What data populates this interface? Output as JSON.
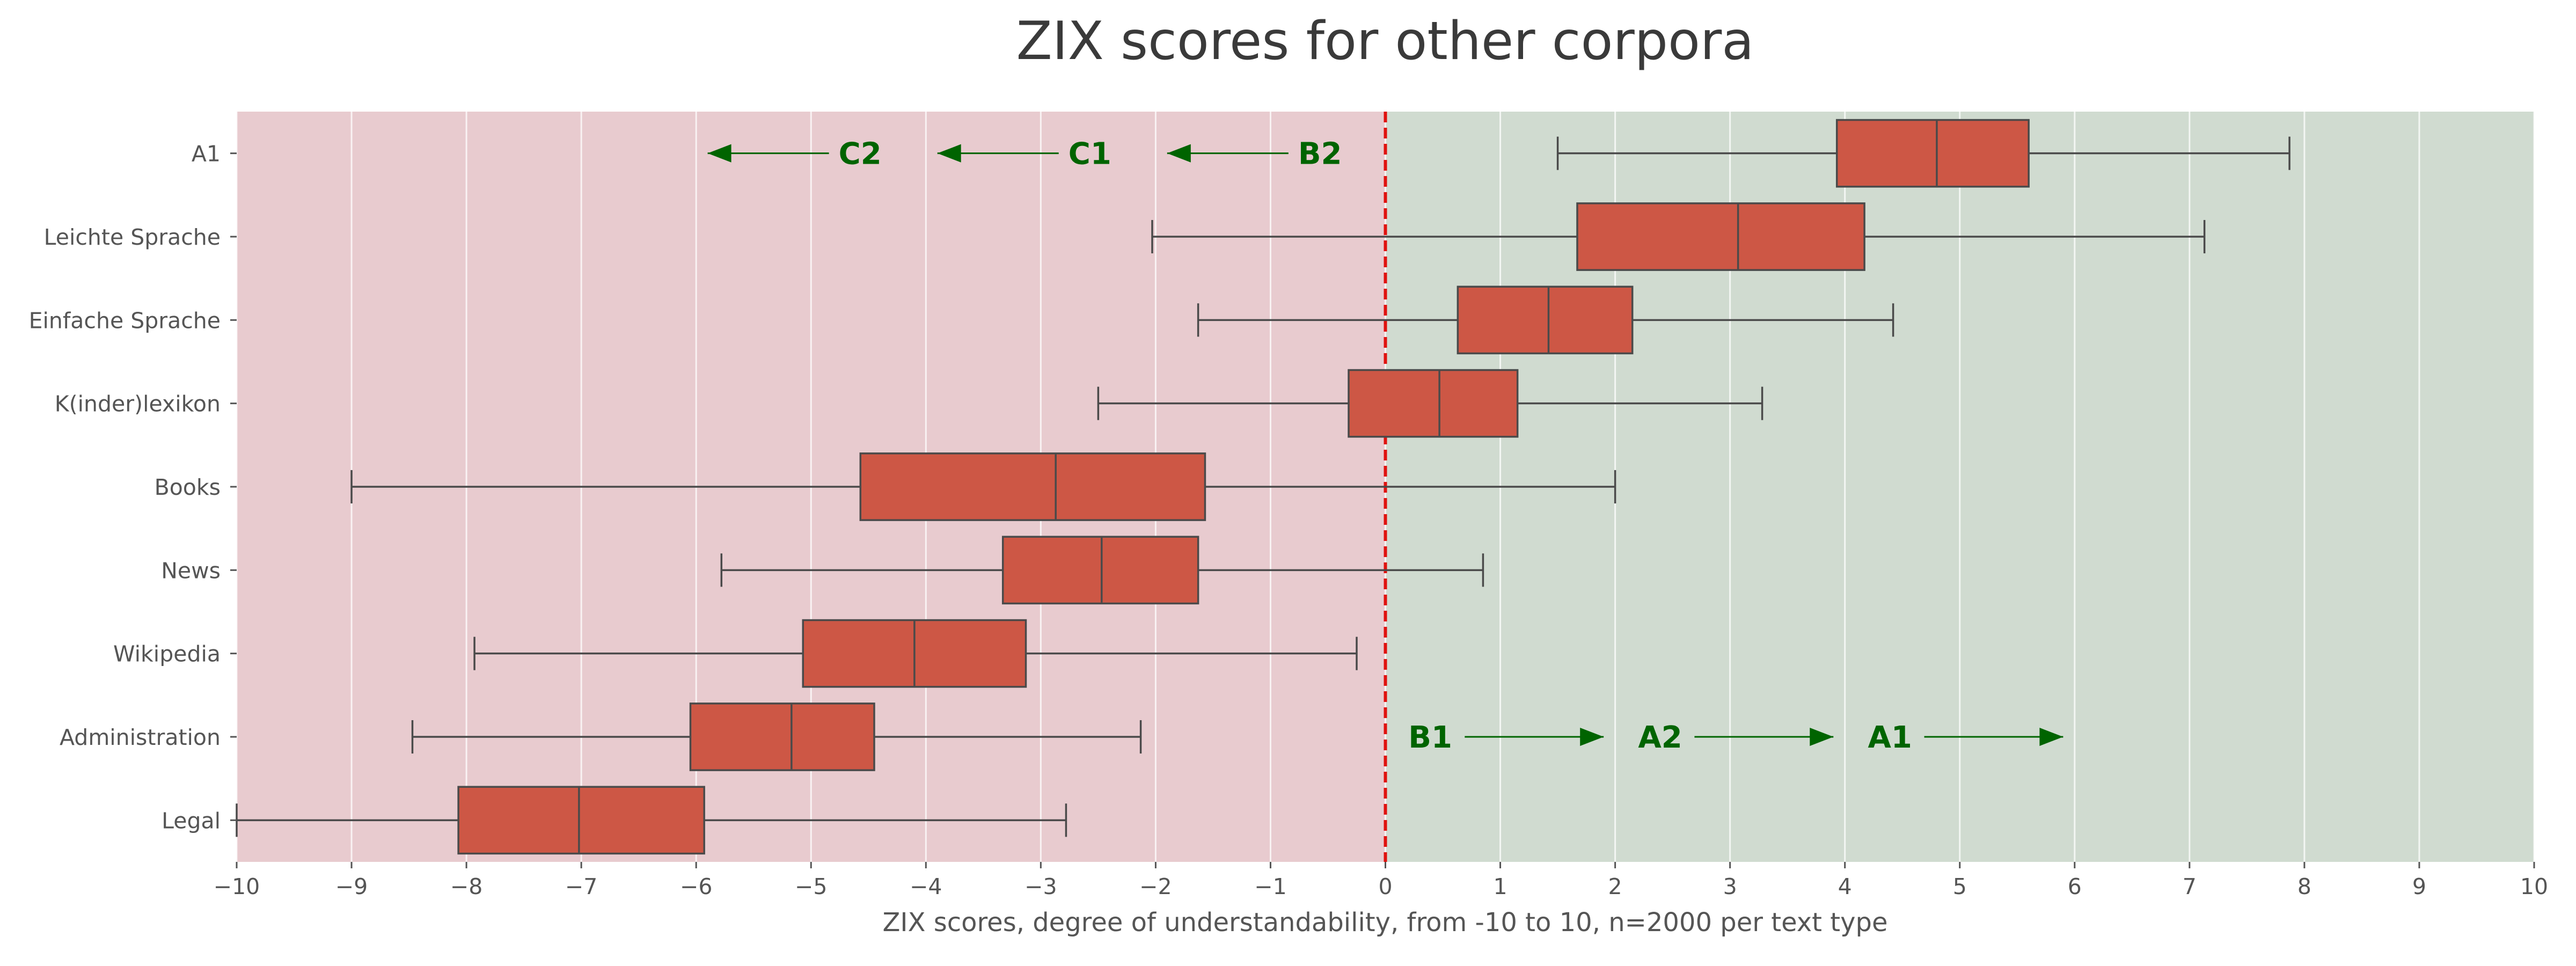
{
  "chart_data": {
    "type": "box",
    "title": "ZIX scores for other corpora",
    "xlabel": "ZIX scores, degree of understandability, from -10 to 10, n=2000 per text type",
    "ylabel": "",
    "xlim": [
      -10,
      10
    ],
    "xticks": [
      "−10",
      "−9",
      "−8",
      "−7",
      "−6",
      "−5",
      "−4",
      "−3",
      "−2",
      "−1",
      "0",
      "1",
      "2",
      "3",
      "4",
      "5",
      "6",
      "7",
      "8",
      "9",
      "10"
    ],
    "grid": "vertical",
    "reference_line": {
      "x": 0,
      "color": "#e0120f",
      "style": "dashed"
    },
    "background": {
      "negative": "#e8cbcf",
      "positive": "#d0dbd0"
    },
    "box_color": "#cd5745",
    "categories": [
      "A1",
      "Leichte Sprache",
      "Einfache Sprache",
      "K(inder)lexikon",
      "Books",
      "News",
      "Wikipedia",
      "Administration",
      "Legal"
    ],
    "boxes": [
      {
        "whislo": 1.5,
        "q1": 3.93,
        "med": 4.8,
        "q3": 5.6,
        "whishi": 7.87
      },
      {
        "whislo": -2.03,
        "q1": 1.67,
        "med": 3.07,
        "q3": 4.17,
        "whishi": 7.13
      },
      {
        "whislo": -1.63,
        "q1": 0.63,
        "med": 1.42,
        "q3": 2.15,
        "whishi": 4.42
      },
      {
        "whislo": -2.5,
        "q1": -0.32,
        "med": 0.47,
        "q3": 1.15,
        "whishi": 3.28
      },
      {
        "whislo": -9.0,
        "q1": -4.57,
        "med": -2.87,
        "q3": -1.57,
        "whishi": 2.0
      },
      {
        "whislo": -5.78,
        "q1": -3.33,
        "med": -2.47,
        "q3": -1.63,
        "whishi": 0.85
      },
      {
        "whislo": -7.93,
        "q1": -5.07,
        "med": -4.1,
        "q3": -3.13,
        "whishi": -0.25
      },
      {
        "whislo": -8.47,
        "q1": -6.05,
        "med": -5.17,
        "q3": -4.45,
        "whishi": -2.13
      },
      {
        "whislo": -10.0,
        "q1": -8.07,
        "med": -7.02,
        "q3": -5.93,
        "whishi": -2.78
      }
    ],
    "annotations": [
      {
        "text": "C2",
        "x": -4.76,
        "arrow_to": -5.9,
        "row": 0.5
      },
      {
        "text": "C1",
        "x": -2.76,
        "arrow_to": -3.9,
        "row": 0.5
      },
      {
        "text": "B2",
        "x": -0.76,
        "arrow_to": -1.9,
        "row": 0.5
      },
      {
        "text": "B1",
        "x": 0.2,
        "arrow_to": 1.9,
        "row": 7.5
      },
      {
        "text": "A2",
        "x": 2.2,
        "arrow_to": 3.9,
        "row": 7.5
      },
      {
        "text": "A1",
        "x": 4.2,
        "arrow_to": 5.9,
        "row": 7.5
      }
    ],
    "annotation_color": "#006400"
  }
}
